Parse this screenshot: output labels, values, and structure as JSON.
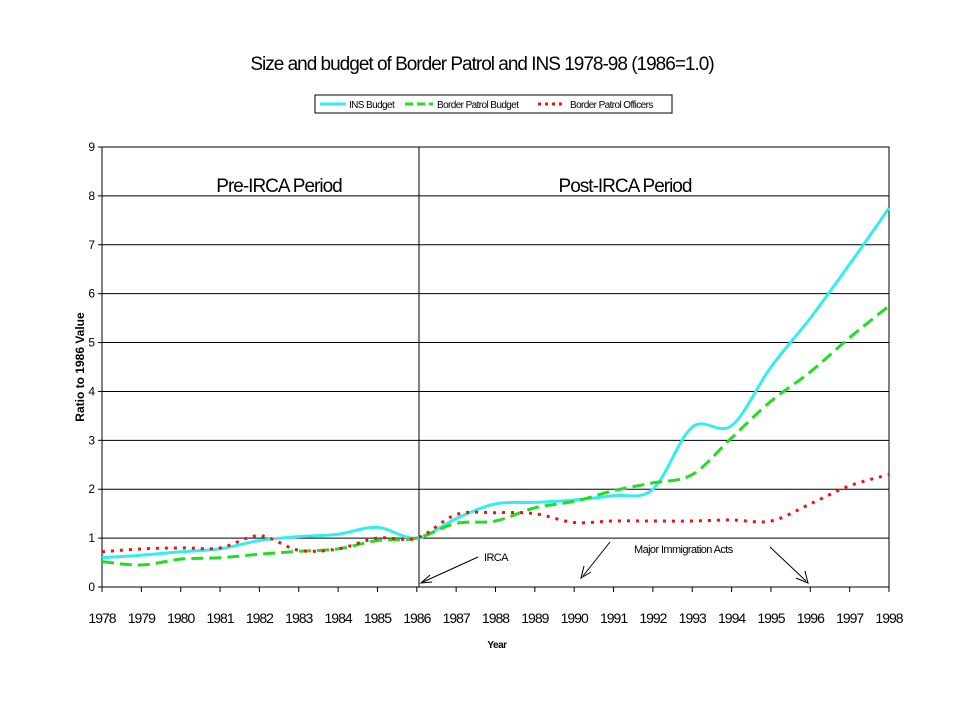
{
  "chart_data": {
    "type": "line",
    "title": "Size and budget of Border Patrol and INS 1978-98 (1986=1.0)",
    "xlabel": "Year",
    "ylabel": "Ratio to 1986 Value",
    "ylim": [
      0,
      9
    ],
    "yticks": [
      "0",
      "1",
      "2",
      "3",
      "4",
      "5",
      "6",
      "7",
      "8",
      "9"
    ],
    "categories": [
      "1978",
      "1979",
      "1980",
      "1981",
      "1982",
      "1983",
      "1984",
      "1985",
      "1986",
      "1987",
      "1988",
      "1989",
      "1990",
      "1991",
      "1992",
      "1993",
      "1994",
      "1995",
      "1996",
      "1997",
      "1998"
    ],
    "grid": "horizontal",
    "legend_position": "top",
    "series": [
      {
        "name": "INS Budget",
        "color": "#33eeee",
        "style": "solid",
        "values": [
          0.6,
          0.65,
          0.72,
          0.78,
          0.95,
          1.03,
          1.08,
          1.22,
          1.0,
          1.4,
          1.7,
          1.73,
          1.78,
          1.87,
          2.0,
          3.27,
          3.3,
          4.5,
          5.5,
          6.6,
          7.75
        ]
      },
      {
        "name": "Border Patrol Budget",
        "color": "#22dd22",
        "style": "dashed",
        "values": [
          0.52,
          0.45,
          0.57,
          0.6,
          0.67,
          0.73,
          0.78,
          0.95,
          1.0,
          1.3,
          1.35,
          1.62,
          1.75,
          1.97,
          2.13,
          2.3,
          3.05,
          3.8,
          4.4,
          5.1,
          5.75
        ]
      },
      {
        "name": "Border Patrol Officers",
        "color": "#ee1111",
        "style": "dotted",
        "values": [
          0.72,
          0.78,
          0.8,
          0.8,
          1.05,
          0.75,
          0.78,
          1.0,
          1.0,
          1.48,
          1.52,
          1.5,
          1.32,
          1.35,
          1.35,
          1.35,
          1.37,
          1.35,
          1.7,
          2.07,
          2.3
        ]
      }
    ],
    "periods": [
      {
        "label": "Pre-IRCA Period"
      },
      {
        "label": "Post-IRCA Period"
      }
    ],
    "divider_year": "1986",
    "annotations": [
      {
        "text": "IRCA",
        "target_year": "1986"
      },
      {
        "text": "Major Immigration Acts",
        "target_years": [
          "1990",
          "1996"
        ]
      }
    ]
  }
}
